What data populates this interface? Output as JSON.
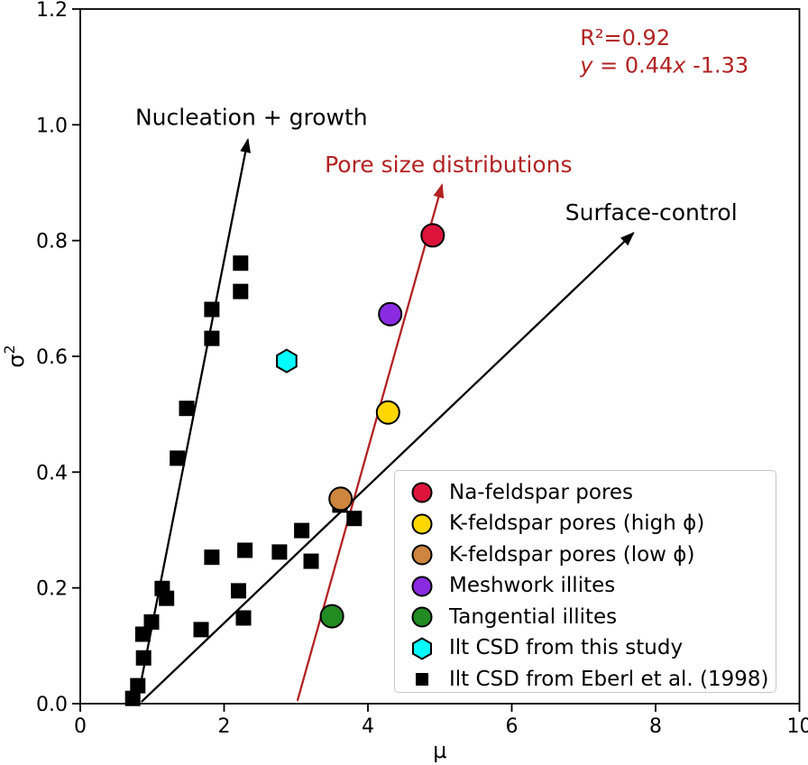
{
  "figure": {
    "background": "#ffffff",
    "accent_red": "#b22222"
  },
  "chart_data": {
    "type": "scatter",
    "title": "",
    "xlabel": "μ",
    "ylabel": "σ²",
    "xlim": [
      0,
      10
    ],
    "ylim": [
      0,
      1.2
    ],
    "grid": false,
    "legend_position": "lower-right-inside",
    "xticks": {
      "values": [
        0,
        2,
        4,
        6,
        8,
        10
      ],
      "labels": [
        "0",
        "2",
        "4",
        "6",
        "8",
        "10"
      ]
    },
    "yticks": {
      "values": [
        0,
        0.2,
        0.4,
        0.6,
        0.8,
        1.0,
        1.2
      ],
      "labels": [
        "0.0",
        "0.2",
        "0.4",
        "0.6",
        "0.8",
        "1.0",
        "1.2"
      ]
    },
    "annotations": [
      {
        "name": "r-squared",
        "text": "R²=0.92",
        "pos": [
          6.95,
          1.138
        ],
        "color": "#b22222"
      },
      {
        "name": "equation",
        "text": "y = 0.44x -1.33",
        "pos": [
          6.95,
          1.09
        ],
        "color": "#b22222",
        "parts": [
          {
            "t": "y",
            "i": true
          },
          {
            "t": " = 0.44",
            "i": false
          },
          {
            "t": "x",
            "i": true
          },
          {
            "t": " -1.33",
            "i": false
          }
        ]
      }
    ],
    "arrows": [
      {
        "name": "nucleation-growth-arrow",
        "label": "Nucleation + growth",
        "color": "#000000",
        "label_color": "#000000",
        "start": [
          0.79,
          0.003
        ],
        "end": [
          2.33,
          0.974
        ],
        "label_pos": [
          2.38,
          1.0
        ]
      },
      {
        "name": "pore-size-arrow",
        "label": "Pore size distributions",
        "color": "#b22222",
        "label_color": "#b22222",
        "start": [
          3.02,
          0.005
        ],
        "end": [
          5.03,
          0.896
        ],
        "label_pos": [
          5.12,
          0.918
        ]
      },
      {
        "name": "surface-control-arrow",
        "label": "Surface-control",
        "color": "#000000",
        "label_color": "#000000",
        "start": [
          0.85,
          0.003
        ],
        "end": [
          7.69,
          0.813
        ],
        "label_pos": [
          7.94,
          0.835
        ]
      }
    ],
    "series": [
      {
        "name": "Na-feldspar pores",
        "marker": "circle",
        "color": "#dc143c",
        "points": [
          [
            4.9,
            0.809
          ]
        ]
      },
      {
        "name": "K-feldspar pores (high ϕ)",
        "marker": "circle",
        "color": "#ffd700",
        "points": [
          [
            4.28,
            0.503
          ]
        ]
      },
      {
        "name": "K-feldspar pores (low ϕ)",
        "marker": "circle",
        "color": "#cd853f",
        "points": [
          [
            3.62,
            0.354
          ]
        ]
      },
      {
        "name": "Meshwork illites",
        "marker": "circle",
        "color": "#8a2be2",
        "points": [
          [
            4.31,
            0.673
          ]
        ]
      },
      {
        "name": "Tangential illites",
        "marker": "circle",
        "color": "#228b22",
        "points": [
          [
            3.5,
            0.151
          ]
        ]
      },
      {
        "name": "Ilt CSD from this study",
        "marker": "hexagon",
        "color": "#00ffff",
        "points": [
          [
            2.87,
            0.592
          ]
        ]
      },
      {
        "name": "Ilt CSD from Eberl et al. (1998)",
        "marker": "square",
        "color": "#000000",
        "points": [
          [
            2.23,
            0.761
          ],
          [
            2.23,
            0.712
          ],
          [
            1.83,
            0.681
          ],
          [
            1.83,
            0.631
          ],
          [
            1.48,
            0.51
          ],
          [
            1.35,
            0.424
          ],
          [
            3.61,
            0.343
          ],
          [
            3.81,
            0.32
          ],
          [
            3.08,
            0.299
          ],
          [
            2.77,
            0.262
          ],
          [
            2.29,
            0.265
          ],
          [
            1.83,
            0.253
          ],
          [
            3.21,
            0.246
          ],
          [
            2.2,
            0.195
          ],
          [
            2.27,
            0.148
          ],
          [
            1.14,
            0.199
          ],
          [
            1.2,
            0.182
          ],
          [
            0.99,
            0.141
          ],
          [
            1.68,
            0.128
          ],
          [
            0.87,
            0.12
          ],
          [
            0.88,
            0.079
          ],
          [
            0.8,
            0.031
          ],
          [
            0.73,
            0.009
          ]
        ]
      }
    ]
  }
}
